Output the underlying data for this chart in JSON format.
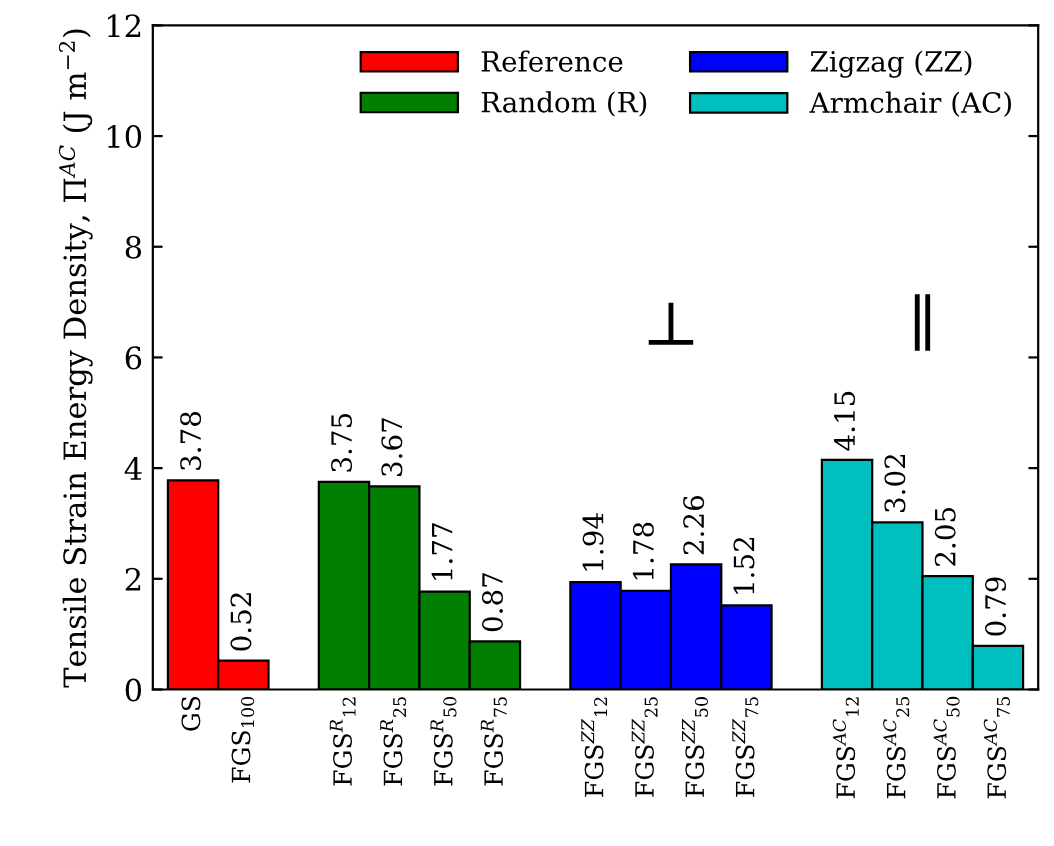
{
  "chart_data": {
    "type": "bar",
    "ylabel": "Tensile Strain Energy Density, Π$^{AC}$ (J m$^{−2}$)",
    "categories": [
      "GS",
      "FGS$_{100}$",
      null,
      "FGS$^{R}$$_{12}$",
      "FGS$^{R}$$_{25}$",
      "FGS$^{R}$$_{50}$",
      "FGS$^{R}$$_{75}$",
      null,
      "FGS$^{ZZ}$$_{12}$",
      "FGS$^{ZZ}$$_{25}$",
      "FGS$^{ZZ}$$_{50}$",
      "FGS$^{ZZ}$$_{75}$",
      null,
      "FGS$^{AC}$$_{12}$",
      "FGS$^{AC}$$_{25}$",
      "FGS$^{AC}$$_{50}$",
      "FGS$^{AC}$$_{75}$"
    ],
    "series": [
      {
        "name": "Reference",
        "color": "#ff0000",
        "values": [
          3.78,
          0.52,
          null,
          null,
          null,
          null,
          null,
          null,
          null,
          null,
          null,
          null,
          null,
          null,
          null,
          null,
          null
        ]
      },
      {
        "name": "Random (R)",
        "color": "#007f00",
        "values": [
          null,
          null,
          null,
          3.75,
          3.67,
          1.77,
          0.87,
          null,
          null,
          null,
          null,
          null,
          null,
          null,
          null,
          null,
          null
        ]
      },
      {
        "name": "Zigzag (ZZ)",
        "color": "#0000ff",
        "values": [
          null,
          null,
          null,
          null,
          null,
          null,
          null,
          null,
          1.94,
          1.78,
          2.26,
          1.52,
          null,
          null,
          null,
          null,
          null
        ]
      },
      {
        "name": "Armchair (AC)",
        "color": "#00bfbf",
        "values": [
          null,
          null,
          null,
          null,
          null,
          null,
          null,
          null,
          null,
          null,
          null,
          null,
          null,
          4.15,
          3.02,
          2.05,
          0.79
        ]
      }
    ],
    "annotations": [
      "⊥",
      "∥"
    ],
    "ylim": [
      0,
      12
    ],
    "yticks": [
      0,
      2,
      4,
      6,
      8,
      10,
      12
    ],
    "data_labels": true,
    "legend": "top right",
    "grid": false
  }
}
